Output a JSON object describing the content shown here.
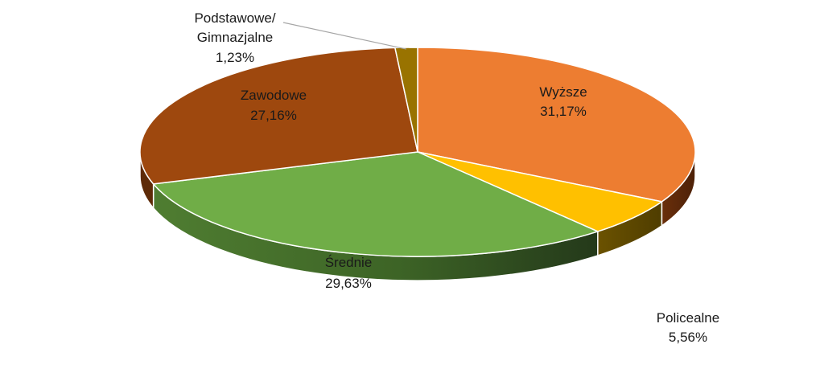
{
  "chart_data": {
    "type": "pie",
    "title": "",
    "slices": [
      {
        "name": "Wyższe",
        "value": 31.17,
        "label": "31,17%",
        "color": "#ED7D31"
      },
      {
        "name": "Policealne",
        "value": 5.56,
        "label": "5,56%",
        "color": "#FFC000"
      },
      {
        "name": "Średnie",
        "value": 29.63,
        "label": "29,63%",
        "color": "#70AD47"
      },
      {
        "name": "Zawodowe",
        "value": 27.16,
        "label": "27,16%",
        "color": "#9E480E"
      },
      {
        "name_line1": "Podstawowe/",
        "name_line2": "Gimnazjalne",
        "value": 1.23,
        "label": "1,23%",
        "color": "#997300"
      }
    ],
    "legend": "none",
    "style": "3d-pie"
  }
}
